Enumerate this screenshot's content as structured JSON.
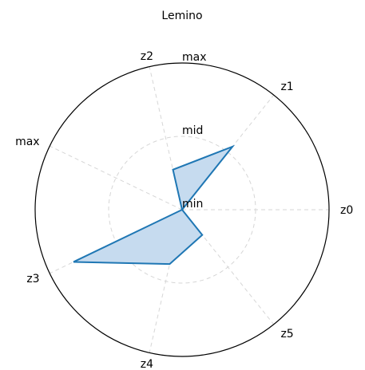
{
  "chart_data": {
    "type": "radar",
    "title": "Lemino",
    "axes": [
      "z0",
      "z1",
      "z2",
      "max",
      "z3",
      "z4",
      "z5"
    ],
    "radial_tick_labels": [
      "min",
      "mid",
      "max"
    ],
    "series": [
      {
        "values": [
          0.0,
          0.55,
          0.28,
          0.0,
          0.82,
          0.38,
          0.22
        ]
      }
    ],
    "colors": {
      "line": "#1f77b4",
      "fill": "#c6dbef",
      "grid": "#d6d6d6"
    },
    "grid": true
  }
}
